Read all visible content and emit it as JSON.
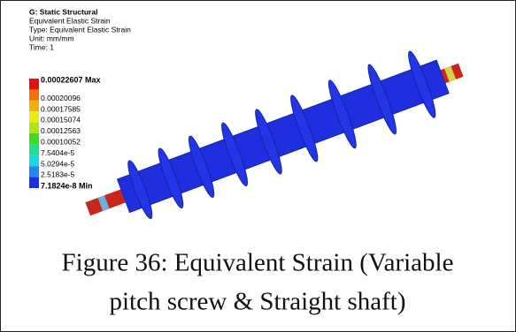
{
  "figure": {
    "header": {
      "title": "G: Static Structural",
      "lines": [
        "Equivalent Elastic Strain",
        "Type: Equivalent Elastic Strain",
        "Unit: mm/mm",
        "Time: 1"
      ]
    },
    "legend": [
      {
        "label": "0.00022607 Max",
        "color": "#e8100f",
        "bold": true
      },
      {
        "label": "0.00020096",
        "color": "#f0700a"
      },
      {
        "label": "0.00017585",
        "color": "#f2b10a"
      },
      {
        "label": "0.00015074",
        "color": "#eeea12"
      },
      {
        "label": "0.00012563",
        "color": "#aee61a"
      },
      {
        "label": "0.00010052",
        "color": "#3ed826"
      },
      {
        "label": "7.5404e-5",
        "color": "#1ee08a"
      },
      {
        "label": "5.0294e-5",
        "color": "#16d8de"
      },
      {
        "label": "2.5183e-5",
        "color": "#1a8cf0"
      },
      {
        "label": "7.1824e-8 Min",
        "color": "#1a2de8",
        "bold": true
      }
    ],
    "caption": [
      "Figure 36: Equivalent Strain (Variable",
      "pitch screw & Straight shaft)"
    ]
  }
}
